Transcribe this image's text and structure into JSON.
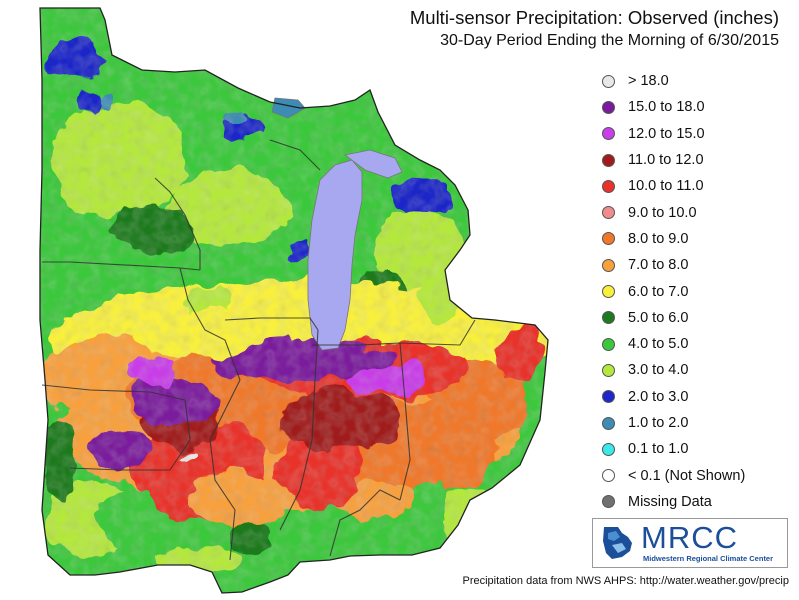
{
  "title": "Multi-sensor Precipitation:  Observed (inches)",
  "subtitle": "30-Day Period Ending the Morning of 6/30/2015",
  "legend": [
    {
      "label": "> 18.0",
      "color": "#e8e8e8"
    },
    {
      "label": "15.0 to 18.0",
      "color": "#7a1a9c"
    },
    {
      "label": "12.0 to 15.0",
      "color": "#c83ee8"
    },
    {
      "label": "11.0 to 12.0",
      "color": "#a01c1c"
    },
    {
      "label": "10.0 to 11.0",
      "color": "#e8322a"
    },
    {
      "label": "9.0 to 10.0",
      "color": "#f08c8c"
    },
    {
      "label": "8.0 to 9.0",
      "color": "#f0782a"
    },
    {
      "label": "7.0 to 8.0",
      "color": "#f8a03c"
    },
    {
      "label": "6.0 to 7.0",
      "color": "#f8f03c"
    },
    {
      "label": "5.0 to 6.0",
      "color": "#1e7a1e"
    },
    {
      "label": "4.0 to 5.0",
      "color": "#3cc83c"
    },
    {
      "label": "3.0 to 4.0",
      "color": "#b4e83c"
    },
    {
      "label": "2.0 to 3.0",
      "color": "#1e28c8"
    },
    {
      "label": "1.0 to 2.0",
      "color": "#3c8cb4"
    },
    {
      "label": "0.1 to 1.0",
      "color": "#3ce8e8"
    },
    {
      "label": "< 0.1 (Not Shown)",
      "color": "#ffffff"
    },
    {
      "label": "Missing Data",
      "color": "#707070"
    }
  ],
  "logo": {
    "name": "MRCC",
    "subtitle": "Midwestern Regional Climate Center"
  },
  "footer": "Precipitation data from NWS AHPS: http://water.weather.gov/precip",
  "map": {
    "region": "Midwestern United States",
    "lake_color": "#a8a8f0"
  }
}
